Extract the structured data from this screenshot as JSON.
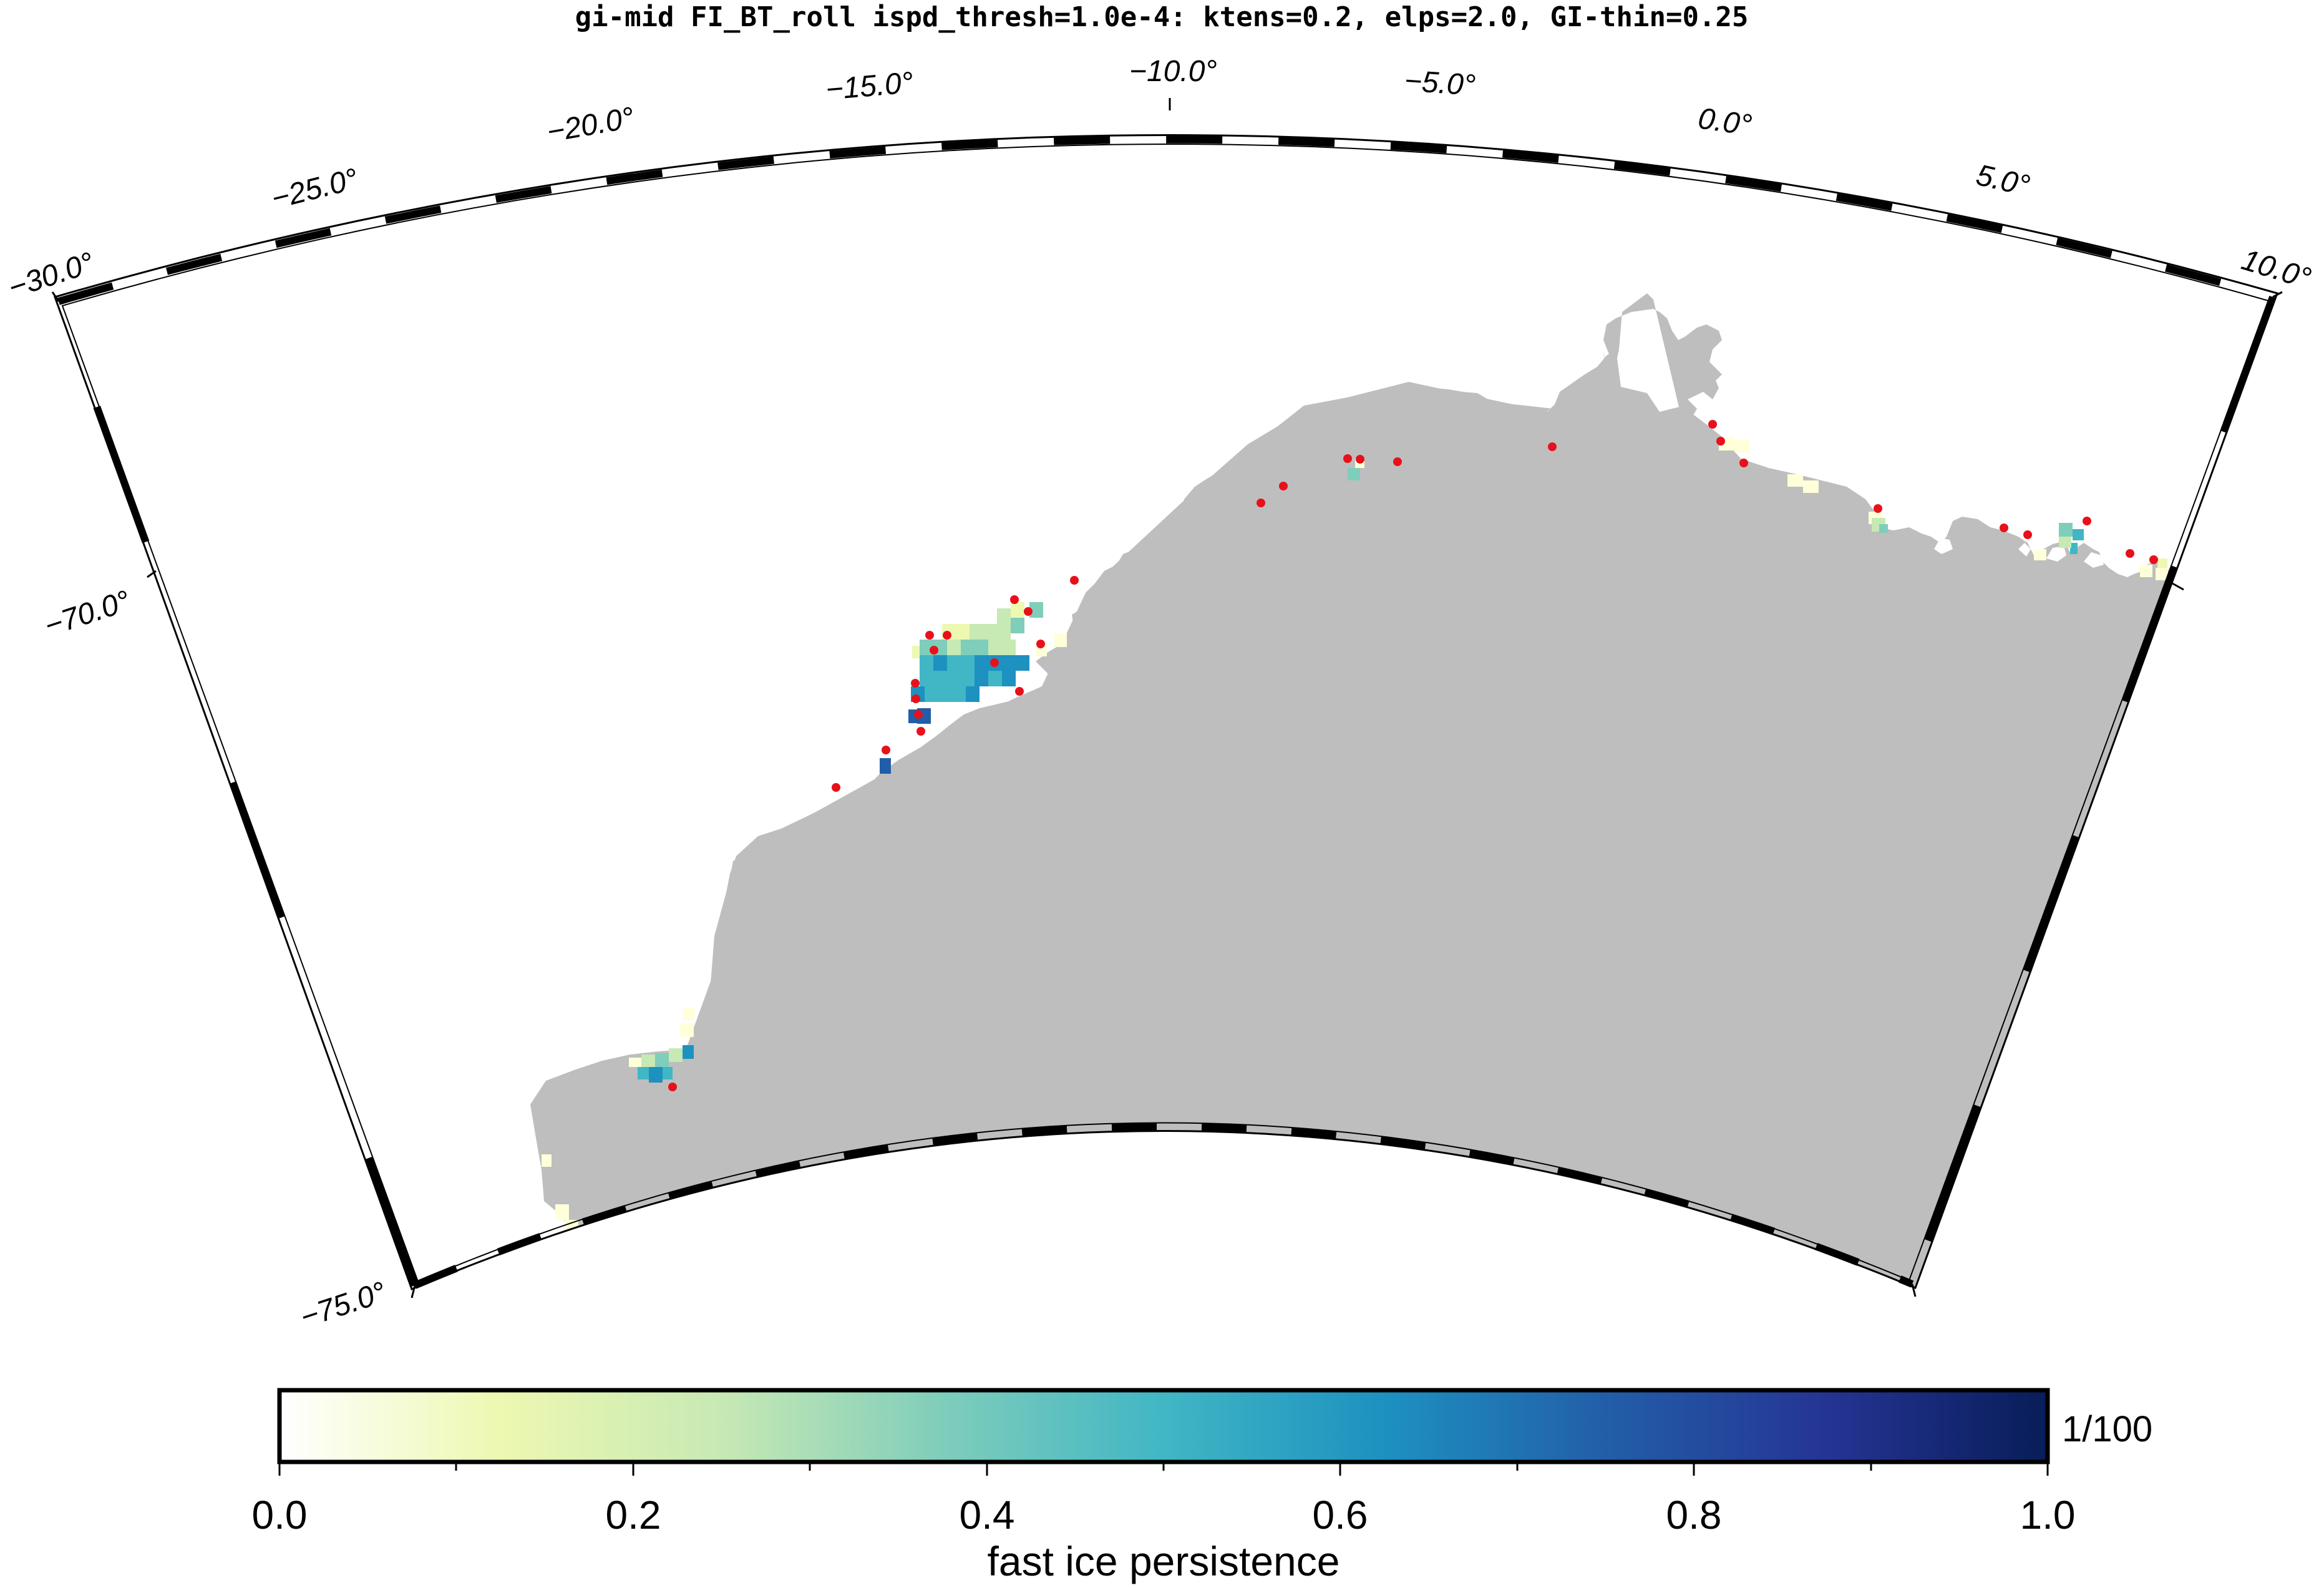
{
  "title": "gi-mid FI_BT_roll ispd_thresh=1.0e-4: ktens=0.2, elps=2.0, GI-thin=0.25",
  "map": {
    "projection": "conic",
    "lon_range": [
      -30.0,
      10.0
    ],
    "lat_range": [
      -75.0,
      -68.0
    ],
    "lon_labels": [
      "−30.0°",
      "−25.0°",
      "−20.0°",
      "−15.0°",
      "−10.0°",
      "−5.0°",
      "0.0°",
      "5.0°",
      "10.0°"
    ],
    "lat_labels": [
      "−70.0°",
      "−75.0°"
    ],
    "colors": {
      "land": "#bebebe",
      "grounded_iceberg_points": "#e8101a",
      "frame_dark": "#000000",
      "frame_light": "#ffffff"
    }
  },
  "colorbar": {
    "tick_labels": [
      "0.0",
      "0.2",
      "0.4",
      "0.6",
      "0.8",
      "1.0"
    ],
    "range": [
      0.0,
      1.0
    ],
    "unit": "1/100",
    "label": "fast ice persistence",
    "colormap": "YlGnBu",
    "colormap_stops": [
      "#ffffd9",
      "#edf8b1",
      "#c7e9b4",
      "#7fcdbb",
      "#41b6c4",
      "#1d91c0",
      "#225ea8",
      "#253494",
      "#081d58"
    ]
  }
}
